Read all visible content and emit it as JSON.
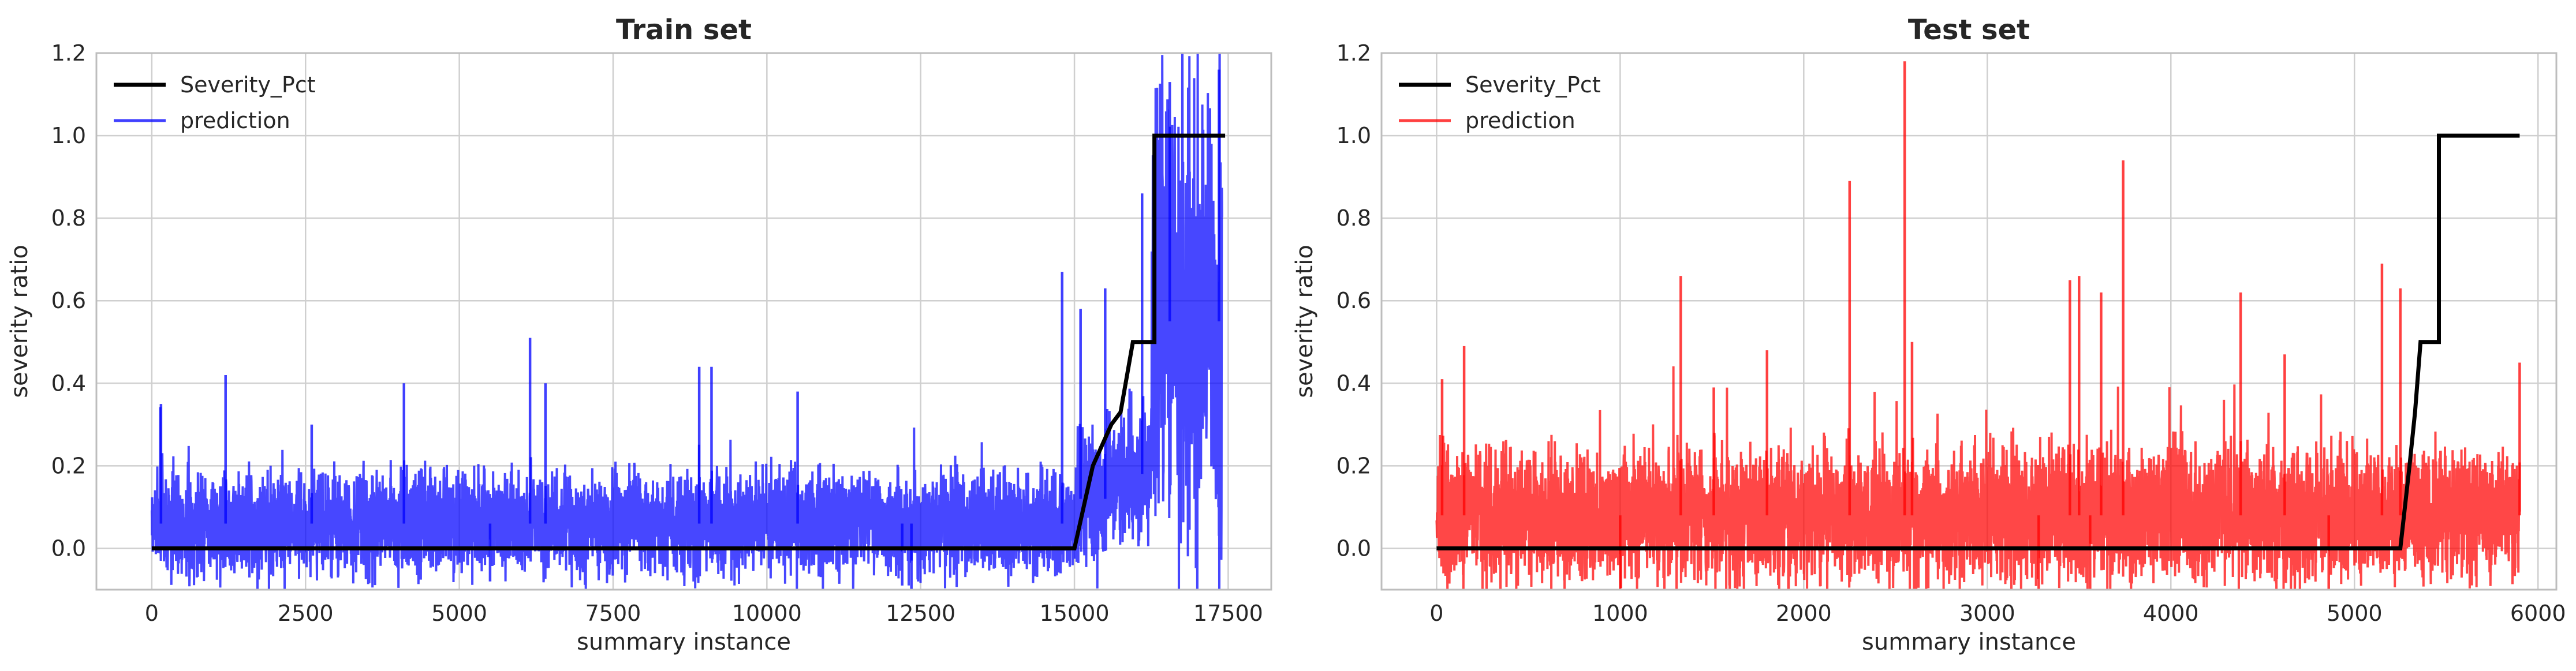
{
  "chart_data": [
    {
      "type": "line",
      "title": "Train set",
      "xlabel": "summary instance",
      "ylabel": "severity ratio",
      "xlim": [
        -900,
        18200
      ],
      "ylim": [
        -0.1,
        1.2
      ],
      "xticks": [
        0,
        2500,
        5000,
        7500,
        10000,
        12500,
        15000,
        17500
      ],
      "xtick_labels": [
        "0",
        "2500",
        "5000",
        "7500",
        "10000",
        "12500",
        "15000",
        "17500"
      ],
      "yticks": [
        0.0,
        0.2,
        0.4,
        0.6,
        0.8,
        1.0,
        1.2
      ],
      "ytick_labels": [
        "0.0",
        "0.2",
        "0.4",
        "0.6",
        "0.8",
        "1.0",
        "1.2"
      ],
      "grid": true,
      "legend": "upper-left",
      "series": [
        {
          "name": "Severity_Pct",
          "color": "#000000",
          "x": [
            0,
            15000,
            15150,
            15300,
            15300,
            15450,
            15450,
            15600,
            15600,
            15750,
            15750,
            15950,
            15950,
            16300,
            16300,
            17450
          ],
          "y": [
            0,
            0,
            0.1,
            0.2,
            0.2,
            0.25,
            0.25,
            0.3,
            0.3,
            0.33,
            0.33,
            0.5,
            0.5,
            0.5,
            1.0,
            1.0
          ]
        },
        {
          "name": "prediction",
          "color": "#0000ff",
          "noise": {
            "n": 17400,
            "x_end": 17400,
            "base_segments": [
              [
                0,
                15000,
                0.06
              ],
              [
                15000,
                15500,
                0.12
              ],
              [
                15500,
                16250,
                0.18
              ],
              [
                16250,
                17400,
                0.55
              ]
            ],
            "spread": [
              [
                0,
                15000,
                0.055
              ],
              [
                15000,
                16250,
                0.07
              ],
              [
                16250,
                17400,
                0.25
              ]
            ],
            "seed": 7
          },
          "spikes": [
            [
              150,
              0.35
            ],
            [
              1200,
              0.42
            ],
            [
              2600,
              0.3
            ],
            [
              4100,
              0.4
            ],
            [
              6150,
              0.51
            ],
            [
              6400,
              0.4
            ],
            [
              8900,
              0.44
            ],
            [
              9100,
              0.44
            ],
            [
              10500,
              0.38
            ],
            [
              14800,
              0.67
            ],
            [
              15100,
              0.58
            ],
            [
              15500,
              0.63
            ],
            [
              16100,
              0.86
            ],
            [
              16550,
              1.13
            ],
            [
              17350,
              1.16
            ],
            [
              12200,
              -0.09
            ],
            [
              12350,
              -0.1
            ],
            [
              5500,
              -0.08
            ]
          ]
        }
      ]
    },
    {
      "type": "line",
      "title": "Test set",
      "xlabel": "summary instance",
      "ylabel": "severity ratio",
      "xlim": [
        -300,
        6100
      ],
      "ylim": [
        -0.1,
        1.2
      ],
      "xticks": [
        0,
        1000,
        2000,
        3000,
        4000,
        5000,
        6000
      ],
      "xtick_labels": [
        "0",
        "1000",
        "2000",
        "3000",
        "4000",
        "5000",
        "6000"
      ],
      "yticks": [
        0.0,
        0.2,
        0.4,
        0.6,
        0.8,
        1.0,
        1.2
      ],
      "ytick_labels": [
        "0.0",
        "0.2",
        "0.4",
        "0.6",
        "0.8",
        "1.0",
        "1.2"
      ],
      "grid": true,
      "legend": "upper-left",
      "series": [
        {
          "name": "Severity_Pct",
          "color": "#000000",
          "x": [
            0,
            5250,
            5300,
            5330,
            5330,
            5360,
            5360,
            5460,
            5460,
            5900
          ],
          "y": [
            0,
            0,
            0.2,
            0.33,
            0.33,
            0.5,
            0.5,
            0.5,
            1.0,
            1.0
          ]
        },
        {
          "name": "prediction",
          "color": "#ff0000",
          "noise": {
            "n": 5900,
            "x_end": 5900,
            "base_segments": [
              [
                0,
                5900,
                0.08
              ]
            ],
            "spread": [
              [
                0,
                5900,
                0.07
              ]
            ],
            "seed": 13
          },
          "spikes": [
            [
              30,
              0.41
            ],
            [
              150,
              0.49
            ],
            [
              1330,
              0.66
            ],
            [
              1510,
              0.39
            ],
            [
              1800,
              0.48
            ],
            [
              2250,
              0.89
            ],
            [
              2550,
              1.18
            ],
            [
              2590,
              0.5
            ],
            [
              3450,
              0.65
            ],
            [
              3500,
              0.66
            ],
            [
              3620,
              0.62
            ],
            [
              3740,
              0.94
            ],
            [
              4380,
              0.62
            ],
            [
              4620,
              0.47
            ],
            [
              5150,
              0.69
            ],
            [
              5250,
              0.63
            ],
            [
              5900,
              0.45
            ],
            [
              1000,
              -0.1
            ],
            [
              3280,
              -0.1
            ],
            [
              3560,
              -0.1
            ],
            [
              4860,
              -0.1
            ]
          ]
        }
      ]
    }
  ]
}
